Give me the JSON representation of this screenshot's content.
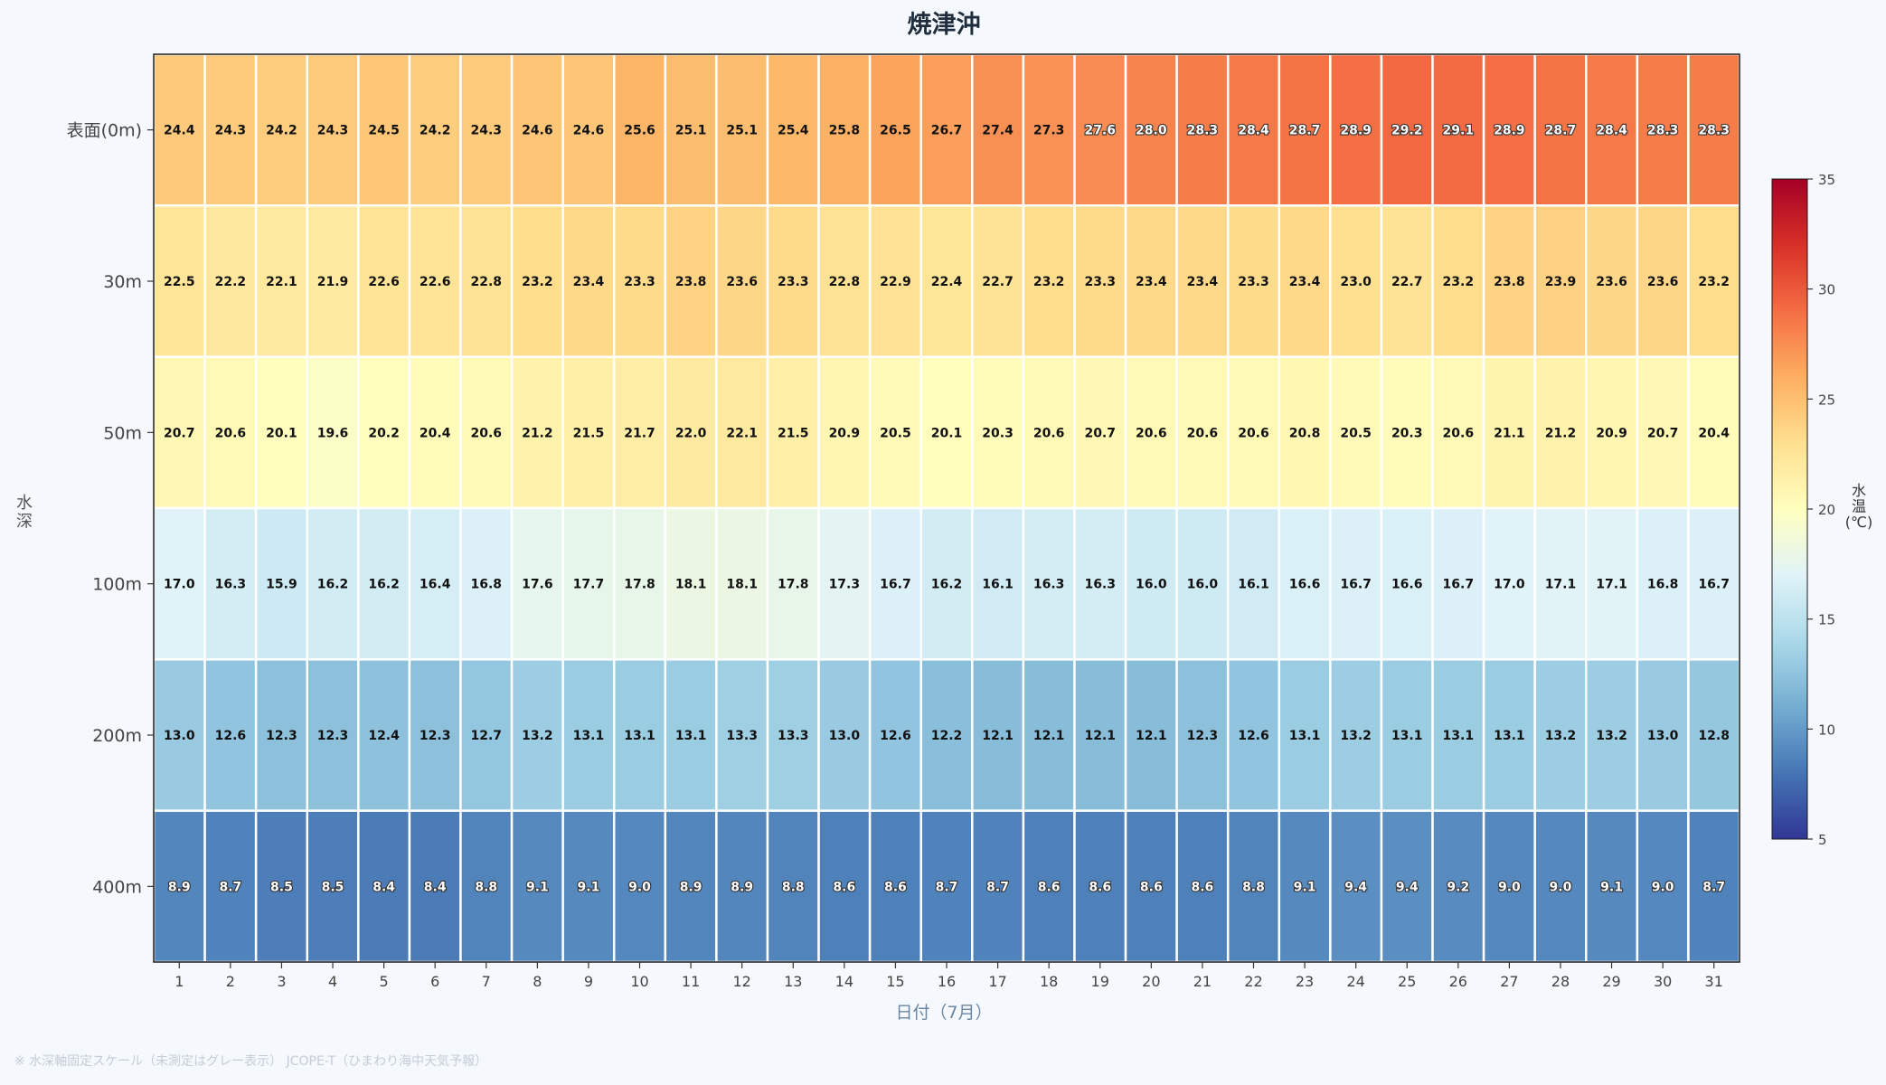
{
  "chart_data": {
    "type": "heatmap",
    "title": "焼津沖",
    "xlabel": "日付（7月）",
    "ylabel": "水深",
    "x": [
      "1",
      "2",
      "3",
      "4",
      "5",
      "6",
      "7",
      "8",
      "9",
      "10",
      "11",
      "12",
      "13",
      "14",
      "15",
      "16",
      "17",
      "18",
      "19",
      "20",
      "21",
      "22",
      "23",
      "24",
      "25",
      "26",
      "27",
      "28",
      "29",
      "30",
      "31"
    ],
    "y": [
      "表面(0m)",
      "30m",
      "50m",
      "100m",
      "200m",
      "400m"
    ],
    "values": [
      [
        "24.4",
        "24.3",
        "24.2",
        "24.3",
        "24.5",
        "24.2",
        "24.3",
        "24.6",
        "24.6",
        "25.6",
        "25.1",
        "25.1",
        "25.4",
        "25.8",
        "26.5",
        "26.7",
        "27.4",
        "27.3",
        "27.6",
        "28.0",
        "28.3",
        "28.4",
        "28.7",
        "28.9",
        "29.2",
        "29.1",
        "28.9",
        "28.7",
        "28.4",
        "28.3",
        "28.3"
      ],
      [
        "22.5",
        "22.2",
        "22.1",
        "21.9",
        "22.6",
        "22.6",
        "22.8",
        "23.2",
        "23.4",
        "23.3",
        "23.8",
        "23.6",
        "23.3",
        "22.8",
        "22.9",
        "22.4",
        "22.7",
        "23.2",
        "23.3",
        "23.4",
        "23.4",
        "23.3",
        "23.4",
        "23.0",
        "22.7",
        "23.2",
        "23.8",
        "23.9",
        "23.6",
        "23.6",
        "23.2"
      ],
      [
        "20.7",
        "20.6",
        "20.1",
        "19.6",
        "20.2",
        "20.4",
        "20.6",
        "21.2",
        "21.5",
        "21.7",
        "22.0",
        "22.1",
        "21.5",
        "20.9",
        "20.5",
        "20.1",
        "20.3",
        "20.6",
        "20.7",
        "20.6",
        "20.6",
        "20.6",
        "20.8",
        "20.5",
        "20.3",
        "20.6",
        "21.1",
        "21.2",
        "20.9",
        "20.7",
        "20.4"
      ],
      [
        "17.0",
        "16.3",
        "15.9",
        "16.2",
        "16.2",
        "16.4",
        "16.8",
        "17.6",
        "17.7",
        "17.8",
        "18.1",
        "18.1",
        "17.8",
        "17.3",
        "16.7",
        "16.2",
        "16.1",
        "16.3",
        "16.3",
        "16.0",
        "16.0",
        "16.1",
        "16.6",
        "16.7",
        "16.6",
        "16.7",
        "17.0",
        "17.1",
        "17.1",
        "16.8",
        "16.7"
      ],
      [
        "13.0",
        "12.6",
        "12.3",
        "12.3",
        "12.4",
        "12.3",
        "12.7",
        "13.2",
        "13.1",
        "13.1",
        "13.1",
        "13.3",
        "13.3",
        "13.0",
        "12.6",
        "12.2",
        "12.1",
        "12.1",
        "12.1",
        "12.1",
        "12.3",
        "12.6",
        "13.1",
        "13.2",
        "13.1",
        "13.1",
        "13.1",
        "13.2",
        "13.2",
        "13.0",
        "12.8"
      ],
      [
        "8.9",
        "8.7",
        "8.5",
        "8.5",
        "8.4",
        "8.4",
        "8.8",
        "9.1",
        "9.1",
        "9.0",
        "8.9",
        "8.9",
        "8.8",
        "8.6",
        "8.6",
        "8.7",
        "8.7",
        "8.6",
        "8.6",
        "8.6",
        "8.6",
        "8.8",
        "9.1",
        "9.4",
        "9.4",
        "9.2",
        "9.0",
        "9.0",
        "9.1",
        "9.0",
        "8.7"
      ]
    ],
    "colorbar": {
      "label": "水温(℃)",
      "min": 5,
      "max": 35,
      "ticks": [
        "5",
        "10",
        "15",
        "20",
        "25",
        "30",
        "35"
      ],
      "colormap": "RdYlBu_r"
    },
    "footnote": "※ 水深軸固定スケール（未測定はグレー表示） JCOPE-T（ひまわり海中天気予報）"
  }
}
